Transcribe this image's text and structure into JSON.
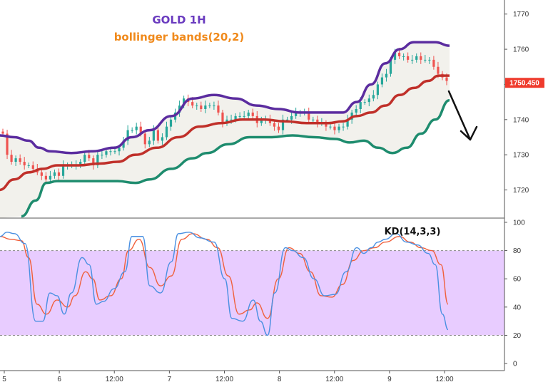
{
  "colors": {
    "up": "#26a69a",
    "down": "#ef5350",
    "upper_band": "#5b2c9f",
    "basis": "#c0302a",
    "lower_band": "#1e8c6e",
    "band_fill": "#f2f1ec",
    "k_line": "#4a90e2",
    "d_line": "#f0603c",
    "kd_zone": "#e8ccff",
    "title1": "#6a3bbf",
    "title2": "#f08a1c",
    "arrow": "#111111",
    "price_tag": "#ef3b2d"
  },
  "chart_data": [
    {
      "type": "candlestick",
      "title": "GOLD 1H",
      "subtitle": "bollinger bands(20,2)",
      "last_price": "1750.450",
      "ylim": [
        1712,
        1774
      ],
      "y_ticks": [
        "1720",
        "1730",
        "1740",
        "1750",
        "1760",
        "1770"
      ],
      "x_ticks": [
        "5",
        "6",
        "12:00",
        "7",
        "12:00",
        "8",
        "12:00",
        "9",
        "12:00"
      ],
      "bars": [
        1736,
        1730,
        1728,
        1729,
        1728,
        1727,
        1727,
        1726,
        1725,
        1724,
        1723,
        1724,
        1725,
        1724,
        1727,
        1727,
        1727,
        1727,
        1728,
        1730,
        1729,
        1727,
        1730,
        1730,
        1731,
        1731,
        1731,
        1732,
        1734,
        1737,
        1737,
        1738,
        1736,
        1733,
        1734,
        1737,
        1734,
        1735,
        1738,
        1740,
        1742,
        1744,
        1746,
        1745,
        1744,
        1744,
        1743,
        1744,
        1744,
        1744,
        1742,
        1739,
        1740,
        1740,
        1741,
        1741,
        1741,
        1742,
        1741,
        1739,
        1740,
        1740,
        1739,
        1738,
        1737,
        1740,
        1740,
        1741,
        1742,
        1742,
        1742,
        1740,
        1740,
        1739,
        1739,
        1738,
        1738,
        1737,
        1738,
        1738,
        1740,
        1742,
        1743,
        1745,
        1745,
        1746,
        1747,
        1750,
        1752,
        1753,
        1757,
        1759,
        1758,
        1758,
        1757,
        1757,
        1758,
        1757,
        1757,
        1757,
        1755,
        1753,
        1752,
        1751
      ],
      "upper_band": [
        [
          -1,
          1735.5
        ],
        [
          20,
          1735
        ],
        [
          40,
          1734
        ],
        [
          55,
          1732
        ],
        [
          70,
          1731
        ],
        [
          100,
          1730.5
        ],
        [
          130,
          1731
        ],
        [
          160,
          1732
        ],
        [
          185,
          1735
        ],
        [
          210,
          1737
        ],
        [
          240,
          1741
        ],
        [
          270,
          1746
        ],
        [
          300,
          1747
        ],
        [
          330,
          1746
        ],
        [
          360,
          1744
        ],
        [
          390,
          1743
        ],
        [
          420,
          1742
        ],
        [
          450,
          1742
        ],
        [
          480,
          1742
        ],
        [
          500,
          1745
        ],
        [
          520,
          1750
        ],
        [
          540,
          1756
        ],
        [
          560,
          1760
        ],
        [
          580,
          1762
        ],
        [
          610,
          1762
        ],
        [
          630,
          1761
        ]
      ],
      "basis": [
        [
          -1,
          1720
        ],
        [
          20,
          1723
        ],
        [
          40,
          1725
        ],
        [
          60,
          1726
        ],
        [
          80,
          1727
        ],
        [
          110,
          1727
        ],
        [
          140,
          1727.5
        ],
        [
          165,
          1728
        ],
        [
          190,
          1730
        ],
        [
          220,
          1732
        ],
        [
          250,
          1735
        ],
        [
          280,
          1738
        ],
        [
          310,
          1739
        ],
        [
          340,
          1740
        ],
        [
          370,
          1740
        ],
        [
          400,
          1739.5
        ],
        [
          430,
          1739
        ],
        [
          460,
          1739
        ],
        [
          480,
          1739.5
        ],
        [
          500,
          1741
        ],
        [
          520,
          1742
        ],
        [
          540,
          1744
        ],
        [
          560,
          1747
        ],
        [
          580,
          1749
        ],
        [
          600,
          1751
        ],
        [
          615,
          1752.5
        ],
        [
          630,
          1752.5
        ]
      ],
      "lower_band": [
        [
          30,
          1712.5
        ],
        [
          50,
          1717
        ],
        [
          65,
          1722
        ],
        [
          80,
          1722.5
        ],
        [
          110,
          1722.5
        ],
        [
          140,
          1722.5
        ],
        [
          165,
          1722.5
        ],
        [
          190,
          1722
        ],
        [
          210,
          1723
        ],
        [
          240,
          1726
        ],
        [
          270,
          1729
        ],
        [
          290,
          1730.5
        ],
        [
          320,
          1733
        ],
        [
          350,
          1735
        ],
        [
          380,
          1735
        ],
        [
          410,
          1735.5
        ],
        [
          440,
          1735
        ],
        [
          470,
          1734.5
        ],
        [
          490,
          1733.5
        ],
        [
          510,
          1734
        ],
        [
          530,
          1732
        ],
        [
          550,
          1730.5
        ],
        [
          570,
          1732
        ],
        [
          590,
          1736
        ],
        [
          610,
          1740
        ],
        [
          630,
          1745.5
        ]
      ]
    },
    {
      "type": "line",
      "title": "KD(14,3,3)",
      "ylim": [
        -5,
        103
      ],
      "y_ticks": [
        "0",
        "20",
        "40",
        "60",
        "80",
        "100"
      ],
      "overbought": 80,
      "oversold": 20,
      "series": [
        {
          "key": "k",
          "points": [
            [
              0,
              90
            ],
            [
              10,
              93
            ],
            [
              20,
              92
            ],
            [
              35,
              85
            ],
            [
              50,
              30
            ],
            [
              60,
              30
            ],
            [
              70,
              50
            ],
            [
              80,
              48
            ],
            [
              90,
              35
            ],
            [
              100,
              50
            ],
            [
              115,
              75
            ],
            [
              125,
              70
            ],
            [
              135,
              42
            ],
            [
              145,
              44
            ],
            [
              160,
              53
            ],
            [
              175,
              65
            ],
            [
              185,
              90
            ],
            [
              200,
              90
            ],
            [
              210,
              55
            ],
            [
              225,
              50
            ],
            [
              240,
              72
            ],
            [
              250,
              92
            ],
            [
              265,
              93
            ],
            [
              280,
              89
            ],
            [
              300,
              86
            ],
            [
              315,
              60
            ],
            [
              325,
              32
            ],
            [
              340,
              30
            ],
            [
              355,
              45
            ],
            [
              365,
              30
            ],
            [
              375,
              20
            ],
            [
              385,
              50
            ],
            [
              400,
              82
            ],
            [
              410,
              80
            ],
            [
              425,
              75
            ],
            [
              440,
              60
            ],
            [
              455,
              48
            ],
            [
              470,
              49
            ],
            [
              485,
              65
            ],
            [
              500,
              82
            ],
            [
              510,
              78
            ],
            [
              520,
              82
            ],
            [
              530,
              86
            ],
            [
              540,
              88
            ],
            [
              555,
              92
            ],
            [
              570,
              86
            ],
            [
              585,
              84
            ],
            [
              600,
              78
            ],
            [
              610,
              70
            ],
            [
              620,
              35
            ],
            [
              628,
              24
            ]
          ]
        },
        {
          "key": "d",
          "points": [
            [
              0,
              90
            ],
            [
              15,
              88
            ],
            [
              30,
              87
            ],
            [
              40,
              75
            ],
            [
              52,
              42
            ],
            [
              65,
              35
            ],
            [
              80,
              45
            ],
            [
              95,
              40
            ],
            [
              105,
              48
            ],
            [
              120,
              65
            ],
            [
              130,
              60
            ],
            [
              140,
              45
            ],
            [
              155,
              48
            ],
            [
              170,
              60
            ],
            [
              180,
              80
            ],
            [
              195,
              88
            ],
            [
              210,
              68
            ],
            [
              225,
              55
            ],
            [
              240,
              62
            ],
            [
              255,
              88
            ],
            [
              270,
              92
            ],
            [
              290,
              88
            ],
            [
              305,
              82
            ],
            [
              320,
              62
            ],
            [
              335,
              35
            ],
            [
              350,
              38
            ],
            [
              360,
              43
            ],
            [
              375,
              32
            ],
            [
              390,
              60
            ],
            [
              405,
              82
            ],
            [
              420,
              78
            ],
            [
              435,
              65
            ],
            [
              450,
              48
            ],
            [
              465,
              47
            ],
            [
              480,
              56
            ],
            [
              495,
              73
            ],
            [
              510,
              80
            ],
            [
              525,
              82
            ],
            [
              540,
              86
            ],
            [
              560,
              90
            ],
            [
              575,
              86
            ],
            [
              590,
              82
            ],
            [
              605,
              80
            ],
            [
              618,
              70
            ],
            [
              628,
              42
            ]
          ]
        }
      ]
    }
  ]
}
